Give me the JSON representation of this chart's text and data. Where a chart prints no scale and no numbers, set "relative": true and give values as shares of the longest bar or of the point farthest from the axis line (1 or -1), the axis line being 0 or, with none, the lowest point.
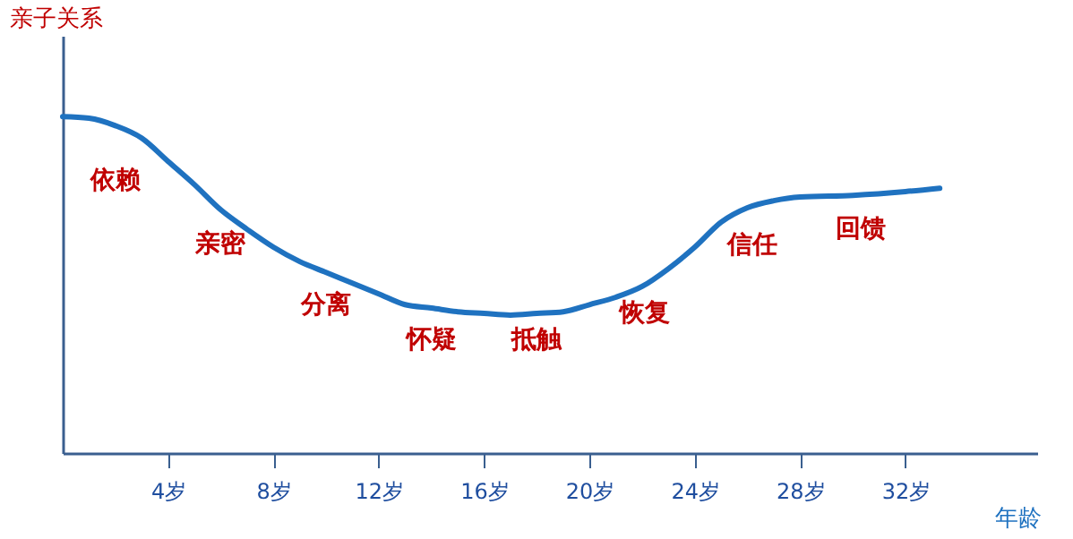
{
  "chart_data": {
    "type": "line",
    "relative": true,
    "ylabel": "亲子关系",
    "xlabel": "年龄",
    "xlim": [
      0,
      37
    ],
    "xticks": [
      {
        "value": 4,
        "label": "4岁"
      },
      {
        "value": 8,
        "label": "8岁"
      },
      {
        "value": 12,
        "label": "12岁"
      },
      {
        "value": 16,
        "label": "16岁"
      },
      {
        "value": 20,
        "label": "20岁"
      },
      {
        "value": 24,
        "label": "24岁"
      },
      {
        "value": 28,
        "label": "28岁"
      },
      {
        "value": 32,
        "label": "32岁"
      }
    ],
    "x": [
      0,
      1,
      2,
      3,
      4,
      5,
      6,
      7,
      8,
      9,
      10,
      11,
      12,
      13,
      14,
      15,
      16,
      17,
      18,
      19,
      20,
      21,
      22,
      23,
      24,
      25,
      26,
      27,
      28,
      30,
      32,
      33.3
    ],
    "series": [
      {
        "color": "#1f72c0",
        "values": [
          1.0,
          0.995,
          0.973,
          0.936,
          0.867,
          0.798,
          0.723,
          0.665,
          0.612,
          0.569,
          0.537,
          0.505,
          0.473,
          0.441,
          0.431,
          0.42,
          0.415,
          0.41,
          0.415,
          0.42,
          0.441,
          0.463,
          0.495,
          0.548,
          0.612,
          0.686,
          0.729,
          0.75,
          0.761,
          0.766,
          0.777,
          0.787
        ]
      }
    ],
    "annotations": [
      "依赖",
      "亲密",
      "分离",
      "怀疑",
      "抵触",
      "恢复",
      "信任",
      "回馈"
    ],
    "grid": false,
    "marker": "none",
    "line_style": "solid"
  }
}
